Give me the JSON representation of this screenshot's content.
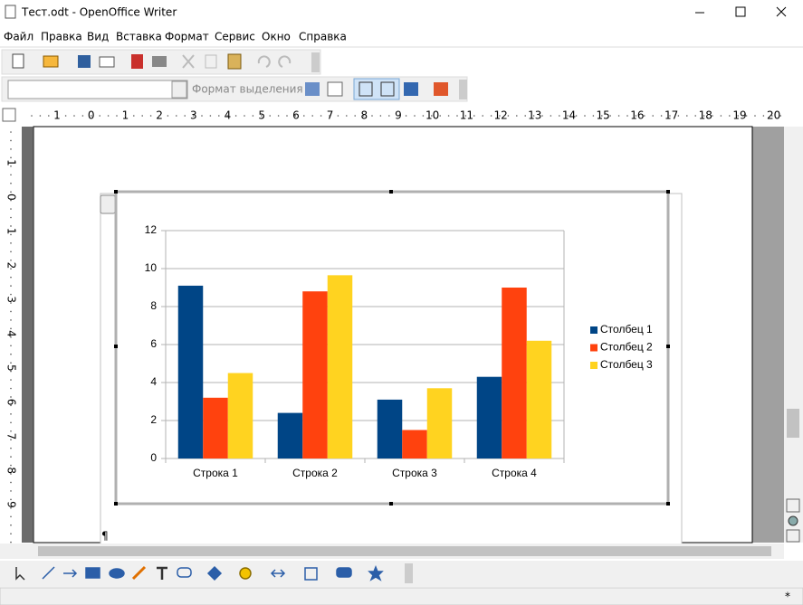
{
  "window": {
    "title": "Тест.odt - OpenOffice Writer"
  },
  "menu": [
    "Файл",
    "Правка",
    "Вид",
    "Вставка",
    "Формат",
    "Сервис",
    "Окно",
    "Справка"
  ],
  "toolbar": {
    "style_placeholder": "Формат выделения"
  },
  "ruler": {
    "horizontal": [
      1,
      0,
      1,
      2,
      3,
      4,
      5,
      6,
      7,
      8,
      9,
      10,
      11,
      12,
      13,
      14,
      15,
      16,
      17,
      18,
      19,
      20
    ],
    "vertical": [
      1,
      0,
      1,
      2,
      3,
      4,
      5,
      6,
      7,
      8,
      9
    ]
  },
  "document": {
    "paragraph_mark": "¶"
  },
  "status_bar": {
    "modified": "*"
  },
  "chart_data": {
    "type": "bar",
    "categories": [
      "Строка 1",
      "Строка 2",
      "Строка 3",
      "Строка 4"
    ],
    "series": [
      {
        "name": "Столбец 1",
        "color": "#004586",
        "values": [
          9.1,
          2.4,
          3.1,
          4.3
        ]
      },
      {
        "name": "Столбец 2",
        "color": "#ff420e",
        "values": [
          3.2,
          8.8,
          1.5,
          9.0
        ]
      },
      {
        "name": "Столбец 3",
        "color": "#ffd320",
        "values": [
          4.5,
          9.65,
          3.7,
          6.2
        ]
      }
    ],
    "ylim": [
      0,
      12
    ],
    "yticks": [
      0,
      2,
      4,
      6,
      8,
      10,
      12
    ],
    "grid": true,
    "legend": "right"
  }
}
